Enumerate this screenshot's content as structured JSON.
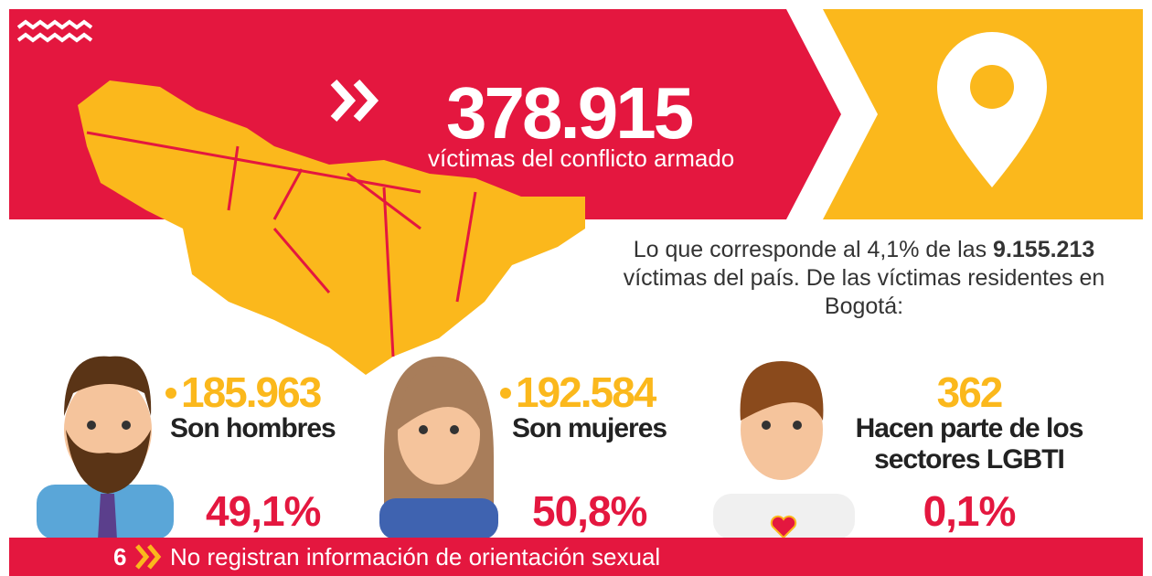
{
  "headline": {
    "total": "378.915",
    "subtitle": "víctimas del conflicto armado"
  },
  "intro": {
    "before": "Lo que corresponde al 4,1% de las ",
    "highlight": "9.155.213",
    "after": " víctimas del país. De las víctimas residentes en Bogotá:"
  },
  "groups": [
    {
      "count": "185.963",
      "label": "Son hombres",
      "share": "49,1%"
    },
    {
      "count": "192.584",
      "label": "Son mujeres",
      "share": "50,8%"
    },
    {
      "count": "362",
      "label": "Hacen parte de los sectores LGBTI",
      "share": "0,1%"
    }
  ],
  "footer": {
    "count": "6",
    "text": "No registran información de orientación sexual"
  }
}
